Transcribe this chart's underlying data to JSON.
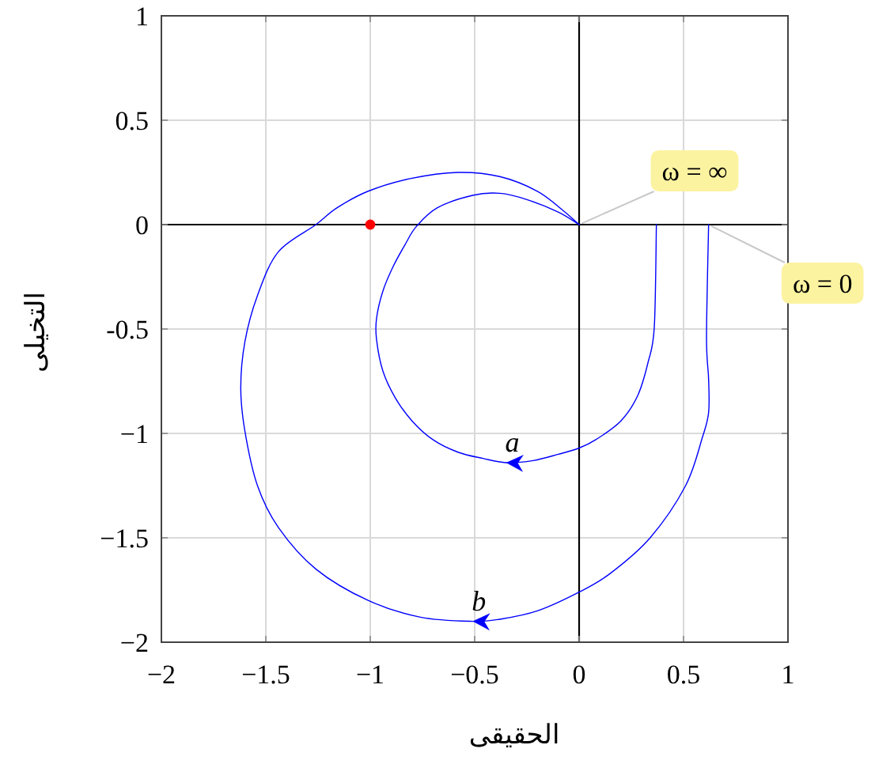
{
  "chart_data": {
    "type": "line",
    "xlabel": "الحقيقى",
    "ylabel": "التخيلى",
    "xlim": [
      -2,
      1
    ],
    "ylim": [
      -2,
      1
    ],
    "xticks": [
      {
        "value": -2,
        "label": "−2"
      },
      {
        "value": -1.5,
        "label": "−1.5"
      },
      {
        "value": -1,
        "label": "−1"
      },
      {
        "value": -0.5,
        "label": "−0.5"
      },
      0,
      0.5,
      1
    ],
    "yticks": [
      {
        "value": -2,
        "label": "−2"
      },
      {
        "value": -1.5,
        "label": "−1.5"
      },
      {
        "value": -1,
        "label": "−1"
      },
      {
        "value": -0.5,
        "label": "-0.5"
      },
      0,
      0.5,
      1
    ],
    "grid": true,
    "annotations": [
      {
        "text": "ω = ∞",
        "x": 0,
        "y": 0
      },
      {
        "text": "ω = 0",
        "x": 0.62,
        "y": 0
      }
    ],
    "series": [
      {
        "name": "a",
        "color": "#0000ff",
        "x": [
          0.37,
          0.36,
          0.33,
          0.28,
          0.2,
          0.08,
          0,
          -0.1,
          -0.22,
          -0.35,
          -0.46,
          -0.58,
          -0.7,
          -0.8,
          -0.88,
          -0.94,
          -0.97,
          -0.97,
          -0.94,
          -0.89,
          -0.83,
          -0.78,
          -0.68,
          -0.51,
          -0.38,
          -0.25,
          -0.1,
          0
        ],
        "values": [
          0,
          -0.49,
          -0.66,
          -0.82,
          -0.94,
          -1.03,
          -1.07,
          -1.1,
          -1.13,
          -1.14,
          -1.12,
          -1.09,
          -1.03,
          -0.94,
          -0.83,
          -0.7,
          -0.55,
          -0.45,
          -0.32,
          -0.2,
          -0.09,
          -0.01,
          0.08,
          0.14,
          0.15,
          0.12,
          0.06,
          0
        ]
      },
      {
        "name": "b",
        "color": "#0000ff",
        "x": [
          0.62,
          0.61,
          0.62,
          0.62,
          0.59,
          0.51,
          0.34,
          0.15,
          0,
          -0.2,
          -0.38,
          -0.51,
          -0.76,
          -1.01,
          -1.26,
          -1.44,
          -1.54,
          -1.6,
          -1.62,
          -1.6,
          -1.54,
          -1.44,
          -1.26,
          -1.16,
          -1.01,
          -0.81,
          -0.58,
          -0.38,
          -0.2,
          -0.08,
          0
        ],
        "values": [
          0,
          -0.54,
          -0.74,
          -0.9,
          -1.02,
          -1.25,
          -1.5,
          -1.67,
          -1.76,
          -1.85,
          -1.89,
          -1.9,
          -1.88,
          -1.8,
          -1.65,
          -1.45,
          -1.25,
          -0.99,
          -0.78,
          -0.56,
          -0.34,
          -0.13,
          0,
          0.08,
          0.16,
          0.22,
          0.25,
          0.23,
          0.16,
          0.07,
          0
        ]
      },
      {
        "type": "scatter",
        "color": "#ff0000",
        "x": [
          -1
        ],
        "values": [
          0
        ]
      }
    ]
  }
}
